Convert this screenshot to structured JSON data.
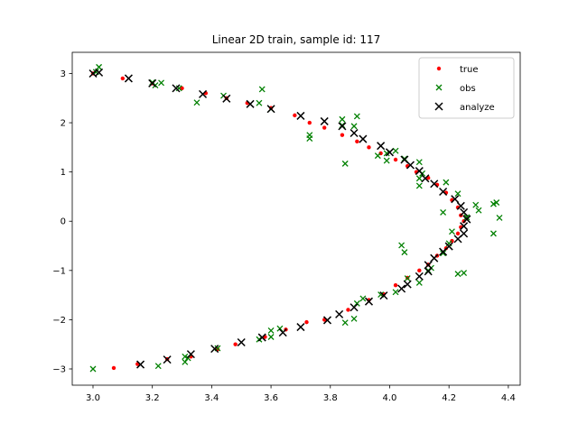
{
  "chart_data": {
    "type": "scatter",
    "title": "Linear 2D train, sample id: 117",
    "xlabel": "",
    "ylabel": "",
    "xlim": [
      2.93,
      4.44
    ],
    "ylim": [
      -3.33,
      3.43
    ],
    "xticks": [
      3.0,
      3.2,
      3.4,
      3.6,
      3.8,
      4.0,
      4.2,
      4.4
    ],
    "xtick_labels": [
      "3.0",
      "3.2",
      "3.4",
      "3.6",
      "3.8",
      "4.0",
      "4.2",
      "4.4"
    ],
    "yticks": [
      -3,
      -2,
      -1,
      0,
      1,
      2,
      3
    ],
    "ytick_labels": [
      "−3",
      "−2",
      "−1",
      "0",
      "1",
      "2",
      "3"
    ],
    "grid": false,
    "legend_position": "top-right",
    "series": [
      {
        "name": "true",
        "marker": "dot",
        "color": "#ff0000",
        "points": [
          [
            3.0,
            3.0
          ],
          [
            3.1,
            2.9
          ],
          [
            3.2,
            2.8
          ],
          [
            3.3,
            2.7
          ],
          [
            3.38,
            2.6
          ],
          [
            3.45,
            2.5
          ],
          [
            3.52,
            2.4
          ],
          [
            3.6,
            2.3
          ],
          [
            3.68,
            2.15
          ],
          [
            3.73,
            2.0
          ],
          [
            3.78,
            1.9
          ],
          [
            3.84,
            1.75
          ],
          [
            3.89,
            1.62
          ],
          [
            3.93,
            1.5
          ],
          [
            3.97,
            1.38
          ],
          [
            4.02,
            1.25
          ],
          [
            4.06,
            1.12
          ],
          [
            4.09,
            1.0
          ],
          [
            4.13,
            0.88
          ],
          [
            4.16,
            0.74
          ],
          [
            4.19,
            0.58
          ],
          [
            4.21,
            0.43
          ],
          [
            4.23,
            0.28
          ],
          [
            4.24,
            0.12
          ],
          [
            4.25,
            0.0
          ],
          [
            4.24,
            -0.12
          ],
          [
            4.23,
            -0.25
          ],
          [
            4.21,
            -0.4
          ],
          [
            4.19,
            -0.55
          ],
          [
            4.16,
            -0.7
          ],
          [
            4.13,
            -0.88
          ],
          [
            4.1,
            -1.0
          ],
          [
            4.06,
            -1.15
          ],
          [
            4.02,
            -1.3
          ],
          [
            3.98,
            -1.48
          ],
          [
            3.93,
            -1.6
          ],
          [
            3.86,
            -1.8
          ],
          [
            3.78,
            -2.0
          ],
          [
            3.72,
            -2.05
          ],
          [
            3.65,
            -2.2
          ],
          [
            3.58,
            -2.35
          ],
          [
            3.48,
            -2.5
          ],
          [
            3.42,
            -2.6
          ],
          [
            3.33,
            -2.75
          ],
          [
            3.25,
            -2.8
          ],
          [
            3.15,
            -2.9
          ],
          [
            3.07,
            -2.98
          ]
        ]
      },
      {
        "name": "obs",
        "marker": "x",
        "color": "#008000",
        "points": [
          [
            3.02,
            3.13
          ],
          [
            3.01,
            3.03
          ],
          [
            3.2,
            2.82
          ],
          [
            3.23,
            2.81
          ],
          [
            3.21,
            2.76
          ],
          [
            3.29,
            2.7
          ],
          [
            3.35,
            2.41
          ],
          [
            3.44,
            2.55
          ],
          [
            3.56,
            2.4
          ],
          [
            3.57,
            2.68
          ],
          [
            3.6,
            2.28
          ],
          [
            3.73,
            1.75
          ],
          [
            3.73,
            1.68
          ],
          [
            3.84,
            2.07
          ],
          [
            3.84,
            1.95
          ],
          [
            3.85,
            1.17
          ],
          [
            3.89,
            2.13
          ],
          [
            3.88,
            1.93
          ],
          [
            3.96,
            1.33
          ],
          [
            3.99,
            1.38
          ],
          [
            3.99,
            1.23
          ],
          [
            4.02,
            1.43
          ],
          [
            4.05,
            1.27
          ],
          [
            4.1,
            1.2
          ],
          [
            4.11,
            0.97
          ],
          [
            4.1,
            0.87
          ],
          [
            4.1,
            0.72
          ],
          [
            4.19,
            0.79
          ],
          [
            4.18,
            0.18
          ],
          [
            4.21,
            -0.21
          ],
          [
            4.23,
            0.56
          ],
          [
            4.26,
            0.08
          ],
          [
            4.29,
            0.33
          ],
          [
            4.3,
            0.22
          ],
          [
            4.35,
            0.35
          ],
          [
            4.36,
            0.38
          ],
          [
            4.37,
            0.07
          ],
          [
            4.35,
            -0.25
          ],
          [
            4.2,
            -0.45
          ],
          [
            4.14,
            -0.95
          ],
          [
            4.04,
            -0.49
          ],
          [
            4.05,
            -0.63
          ],
          [
            4.06,
            -1.16
          ],
          [
            4.1,
            -1.25
          ],
          [
            4.13,
            -1.0
          ],
          [
            4.18,
            -0.65
          ],
          [
            4.23,
            -1.07
          ],
          [
            4.25,
            -1.05
          ],
          [
            4.02,
            -1.44
          ],
          [
            3.97,
            -1.49
          ],
          [
            3.89,
            -1.67
          ],
          [
            3.91,
            -1.57
          ],
          [
            3.88,
            -1.98
          ],
          [
            3.85,
            -2.06
          ],
          [
            3.6,
            -2.22
          ],
          [
            3.6,
            -2.35
          ],
          [
            3.63,
            -2.18
          ],
          [
            3.56,
            -2.4
          ],
          [
            3.42,
            -2.58
          ],
          [
            3.31,
            -2.75
          ],
          [
            3.32,
            -2.78
          ],
          [
            3.31,
            -2.86
          ],
          [
            3.22,
            -2.94
          ],
          [
            3.0,
            -3.0
          ]
        ]
      },
      {
        "name": "analyze",
        "marker": "x",
        "color": "#000000",
        "points": [
          [
            3.0,
            3.0
          ],
          [
            3.02,
            3.02
          ],
          [
            3.12,
            2.9
          ],
          [
            3.2,
            2.8
          ],
          [
            3.28,
            2.7
          ],
          [
            3.37,
            2.58
          ],
          [
            3.45,
            2.49
          ],
          [
            3.53,
            2.38
          ],
          [
            3.6,
            2.28
          ],
          [
            3.7,
            2.14
          ],
          [
            3.78,
            2.03
          ],
          [
            3.84,
            1.93
          ],
          [
            3.88,
            1.79
          ],
          [
            3.91,
            1.67
          ],
          [
            3.97,
            1.53
          ],
          [
            4.0,
            1.4
          ],
          [
            4.05,
            1.25
          ],
          [
            4.07,
            1.14
          ],
          [
            4.1,
            1.02
          ],
          [
            4.12,
            0.87
          ],
          [
            4.15,
            0.76
          ],
          [
            4.18,
            0.6
          ],
          [
            4.22,
            0.45
          ],
          [
            4.24,
            0.31
          ],
          [
            4.25,
            0.18
          ],
          [
            4.26,
            0.04
          ],
          [
            4.25,
            -0.1
          ],
          [
            4.25,
            -0.25
          ],
          [
            4.23,
            -0.36
          ],
          [
            4.2,
            -0.51
          ],
          [
            4.18,
            -0.62
          ],
          [
            4.15,
            -0.75
          ],
          [
            4.13,
            -0.89
          ],
          [
            4.13,
            -1.02
          ],
          [
            4.1,
            -1.12
          ],
          [
            4.06,
            -1.28
          ],
          [
            4.04,
            -1.37
          ],
          [
            3.98,
            -1.51
          ],
          [
            3.93,
            -1.63
          ],
          [
            3.88,
            -1.75
          ],
          [
            3.83,
            -1.89
          ],
          [
            3.79,
            -2.01
          ],
          [
            3.7,
            -2.15
          ],
          [
            3.64,
            -2.26
          ],
          [
            3.57,
            -2.36
          ],
          [
            3.5,
            -2.46
          ],
          [
            3.41,
            -2.59
          ],
          [
            3.33,
            -2.7
          ],
          [
            3.25,
            -2.81
          ],
          [
            3.16,
            -2.91
          ]
        ]
      }
    ]
  }
}
